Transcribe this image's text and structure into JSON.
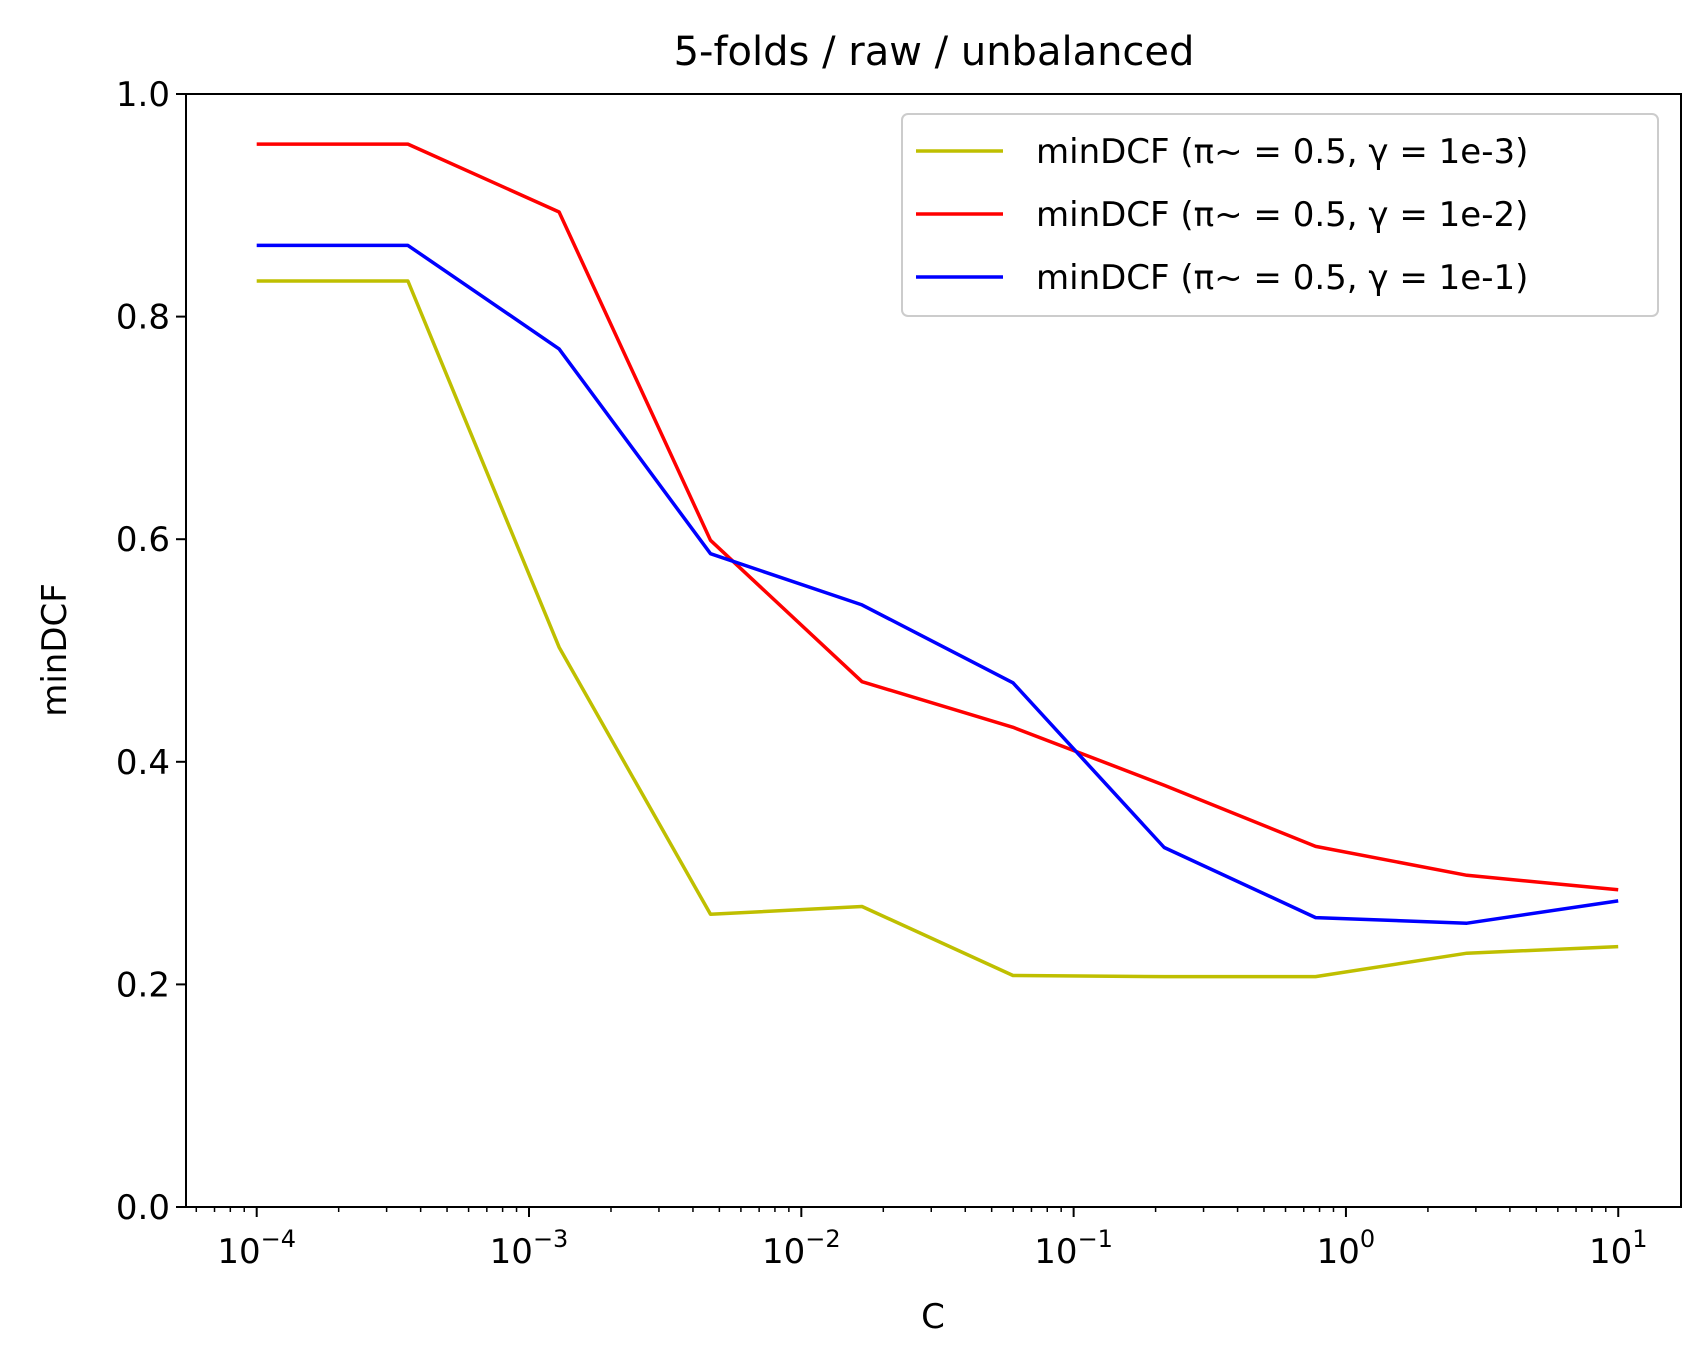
{
  "chart_data": {
    "type": "line",
    "title": "5-folds / raw / unbalanced",
    "xlabel": "C",
    "ylabel": "minDCF",
    "xscale": "log",
    "xlim": [
      5.5e-05,
      17
    ],
    "ylim": [
      0,
      1
    ],
    "x": [
      0.0001,
      0.000359,
      0.00129,
      0.00464,
      0.0167,
      0.0599,
      0.215,
      0.774,
      2.78,
      10
    ],
    "yticks": [
      "0.0",
      "0.2",
      "0.4",
      "0.6",
      "0.8",
      "1.0"
    ],
    "xticks": [
      {
        "base": "10",
        "exp": "−4",
        "value": 0.0001
      },
      {
        "base": "10",
        "exp": "−3",
        "value": 0.001
      },
      {
        "base": "10",
        "exp": "−2",
        "value": 0.01
      },
      {
        "base": "10",
        "exp": "−1",
        "value": 0.1
      },
      {
        "base": "10",
        "exp": "0",
        "value": 1
      },
      {
        "base": "10",
        "exp": "1",
        "value": 10
      }
    ],
    "grid": false,
    "legend_position": "top-right",
    "series": [
      {
        "name": "minDCF (π~ = 0.5, γ = 1e-3)",
        "color": "#bfbf00",
        "values": [
          0.832,
          0.832,
          0.503,
          0.263,
          0.27,
          0.208,
          0.207,
          0.207,
          0.228,
          0.234
        ]
      },
      {
        "name": "minDCF (π~ = 0.5, γ = 1e-2)",
        "color": "#ff0000",
        "values": [
          0.955,
          0.955,
          0.894,
          0.599,
          0.472,
          0.431,
          0.379,
          0.324,
          0.298,
          0.285
        ]
      },
      {
        "name": "minDCF (π~ = 0.5, γ = 1e-1)",
        "color": "#0000ff",
        "values": [
          0.864,
          0.864,
          0.771,
          0.587,
          0.541,
          0.471,
          0.323,
          0.26,
          0.255,
          0.275
        ]
      }
    ]
  }
}
